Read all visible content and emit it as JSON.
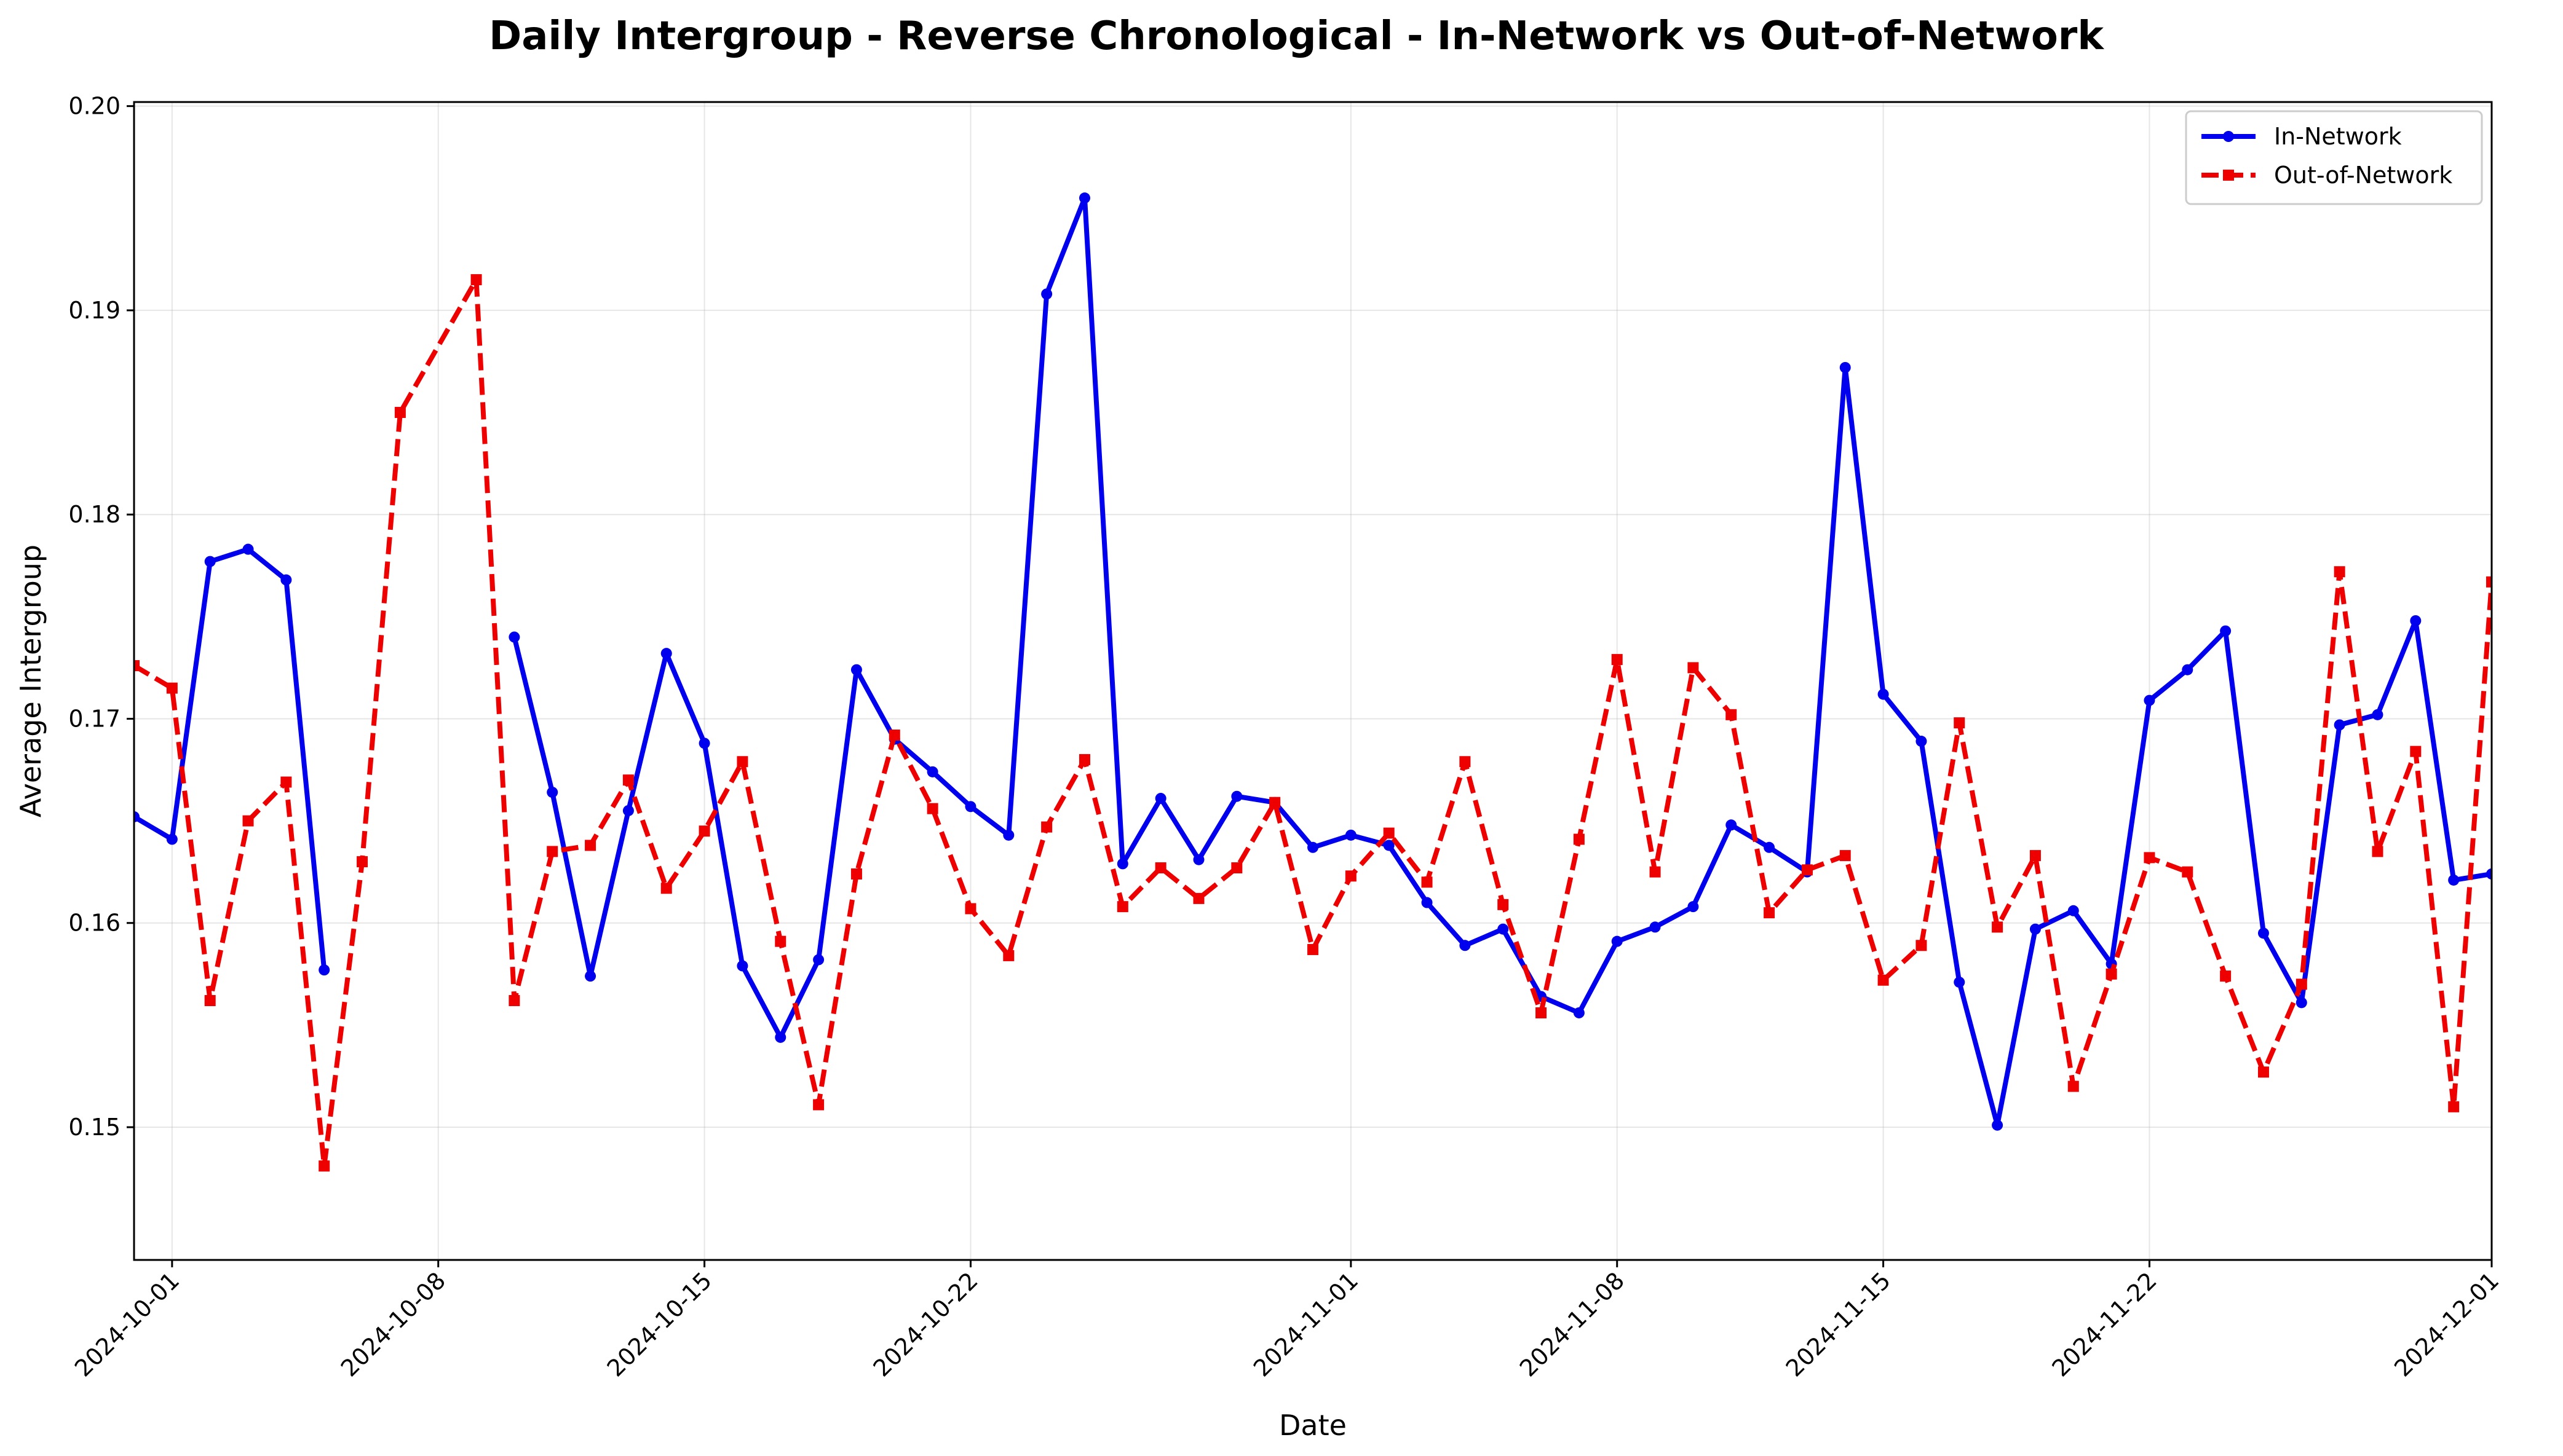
{
  "chart_data": {
    "type": "line",
    "title": "Daily Intergroup - Reverse Chronological - In-Network vs Out-of-Network",
    "xlabel": "Date",
    "ylabel": "Average Intergroup",
    "xlim": [
      "2024-09-30",
      "2024-12-01"
    ],
    "ylim": [
      0.1435,
      0.2002
    ],
    "x_ticks": [
      "2024-10-01",
      "2024-10-08",
      "2024-10-15",
      "2024-10-22",
      "2024-11-01",
      "2024-11-08",
      "2024-11-15",
      "2024-11-22",
      "2024-12-01"
    ],
    "y_ticks": [
      "0.15",
      "0.16",
      "0.17",
      "0.18",
      "0.19",
      "0.20"
    ],
    "grid": true,
    "legend_position": "top-right",
    "series": [
      {
        "name": "In-Network",
        "color": "#0000ee",
        "line_style": "solid",
        "marker": "circle",
        "points": [
          [
            "2024-09-30",
            0.1652
          ],
          [
            "2024-10-01",
            0.1641
          ],
          [
            "2024-10-02",
            0.1777
          ],
          [
            "2024-10-03",
            0.1783
          ],
          [
            "2024-10-04",
            0.1768
          ],
          [
            "2024-10-05",
            0.1577
          ],
          null,
          [
            "2024-10-10",
            0.174
          ],
          [
            "2024-10-11",
            0.1664
          ],
          [
            "2024-10-12",
            0.1574
          ],
          [
            "2024-10-13",
            0.1655
          ],
          [
            "2024-10-14",
            0.1732
          ],
          [
            "2024-10-15",
            0.1688
          ],
          [
            "2024-10-16",
            0.1579
          ],
          [
            "2024-10-17",
            0.1544
          ],
          [
            "2024-10-18",
            0.1582
          ],
          [
            "2024-10-19",
            0.1724
          ],
          [
            "2024-10-20",
            0.169
          ],
          [
            "2024-10-21",
            0.1674
          ],
          [
            "2024-10-22",
            0.1657
          ],
          [
            "2024-10-23",
            0.1643
          ],
          [
            "2024-10-24",
            0.1908
          ],
          [
            "2024-10-25",
            0.1955
          ],
          [
            "2024-10-26",
            0.1629
          ],
          [
            "2024-10-27",
            0.1661
          ],
          [
            "2024-10-28",
            0.1631
          ],
          [
            "2024-10-29",
            0.1662
          ],
          [
            "2024-10-30",
            0.1659
          ],
          [
            "2024-10-31",
            0.1637
          ],
          [
            "2024-11-01",
            0.1643
          ],
          [
            "2024-11-02",
            0.1638
          ],
          [
            "2024-11-03",
            0.161
          ],
          [
            "2024-11-04",
            0.1589
          ],
          [
            "2024-11-05",
            0.1597
          ],
          [
            "2024-11-06",
            0.1564
          ],
          [
            "2024-11-07",
            0.1556
          ],
          [
            "2024-11-08",
            0.1591
          ],
          [
            "2024-11-09",
            0.1598
          ],
          [
            "2024-11-10",
            0.1608
          ],
          [
            "2024-11-11",
            0.1648
          ],
          [
            "2024-11-12",
            0.1637
          ],
          [
            "2024-11-13",
            0.1625
          ],
          [
            "2024-11-14",
            0.1872
          ],
          [
            "2024-11-15",
            0.1712
          ],
          [
            "2024-11-16",
            0.1689
          ],
          [
            "2024-11-17",
            0.1571
          ],
          [
            "2024-11-18",
            0.1501
          ],
          [
            "2024-11-19",
            0.1597
          ],
          [
            "2024-11-20",
            0.1606
          ],
          [
            "2024-11-21",
            0.158
          ],
          [
            "2024-11-22",
            0.1709
          ],
          [
            "2024-11-23",
            0.1724
          ],
          [
            "2024-11-24",
            0.1743
          ],
          [
            "2024-11-25",
            0.1595
          ],
          [
            "2024-11-26",
            0.1561
          ],
          [
            "2024-11-27",
            0.1697
          ],
          [
            "2024-11-28",
            0.1702
          ],
          [
            "2024-11-29",
            0.1748
          ],
          [
            "2024-11-30",
            0.1621
          ],
          [
            "2024-12-01",
            0.1624
          ]
        ]
      },
      {
        "name": "Out-of-Network",
        "color": "#ee0000",
        "line_style": "dashed",
        "marker": "square",
        "points": [
          [
            "2024-09-30",
            0.1726
          ],
          [
            "2024-10-01",
            0.1715
          ],
          [
            "2024-10-02",
            0.1562
          ],
          [
            "2024-10-03",
            0.165
          ],
          [
            "2024-10-04",
            0.1669
          ],
          [
            "2024-10-05",
            0.1481
          ],
          [
            "2024-10-06",
            0.163
          ],
          [
            "2024-10-07",
            0.185
          ],
          [
            "2024-10-09",
            0.1915
          ],
          [
            "2024-10-10",
            0.1562
          ],
          [
            "2024-10-11",
            0.1635
          ],
          [
            "2024-10-12",
            0.1638
          ],
          [
            "2024-10-13",
            0.167
          ],
          [
            "2024-10-14",
            0.1617
          ],
          [
            "2024-10-15",
            0.1645
          ],
          [
            "2024-10-16",
            0.1679
          ],
          [
            "2024-10-17",
            0.1591
          ],
          [
            "2024-10-18",
            0.1511
          ],
          [
            "2024-10-19",
            0.1624
          ],
          [
            "2024-10-20",
            0.1692
          ],
          [
            "2024-10-21",
            0.1656
          ],
          [
            "2024-10-22",
            0.1607
          ],
          [
            "2024-10-23",
            0.1584
          ],
          [
            "2024-10-24",
            0.1647
          ],
          [
            "2024-10-25",
            0.168
          ],
          [
            "2024-10-26",
            0.1608
          ],
          [
            "2024-10-27",
            0.1627
          ],
          [
            "2024-10-28",
            0.1612
          ],
          [
            "2024-10-29",
            0.1627
          ],
          [
            "2024-10-30",
            0.1659
          ],
          [
            "2024-10-31",
            0.1587
          ],
          [
            "2024-11-01",
            0.1623
          ],
          [
            "2024-11-02",
            0.1644
          ],
          [
            "2024-11-03",
            0.162
          ],
          [
            "2024-11-04",
            0.1679
          ],
          [
            "2024-11-05",
            0.1609
          ],
          [
            "2024-11-06",
            0.1556
          ],
          [
            "2024-11-07",
            0.1641
          ],
          [
            "2024-11-08",
            0.1729
          ],
          [
            "2024-11-09",
            0.1625
          ],
          [
            "2024-11-10",
            0.1725
          ],
          [
            "2024-11-11",
            0.1702
          ],
          [
            "2024-11-12",
            0.1605
          ],
          [
            "2024-11-13",
            0.1626
          ],
          [
            "2024-11-14",
            0.1633
          ],
          [
            "2024-11-15",
            0.1572
          ],
          [
            "2024-11-16",
            0.1589
          ],
          [
            "2024-11-17",
            0.1698
          ],
          [
            "2024-11-18",
            0.1598
          ],
          [
            "2024-11-19",
            0.1633
          ],
          [
            "2024-11-20",
            0.152
          ],
          [
            "2024-11-21",
            0.1575
          ],
          [
            "2024-11-22",
            0.1632
          ],
          [
            "2024-11-23",
            0.1625
          ],
          [
            "2024-11-24",
            0.1574
          ],
          [
            "2024-11-25",
            0.1527
          ],
          [
            "2024-11-26",
            0.157
          ],
          [
            "2024-11-27",
            0.1772
          ],
          [
            "2024-11-28",
            0.1635
          ],
          [
            "2024-11-29",
            0.1684
          ],
          [
            "2024-11-30",
            0.151
          ],
          [
            "2024-12-01",
            0.1767
          ]
        ]
      }
    ]
  }
}
